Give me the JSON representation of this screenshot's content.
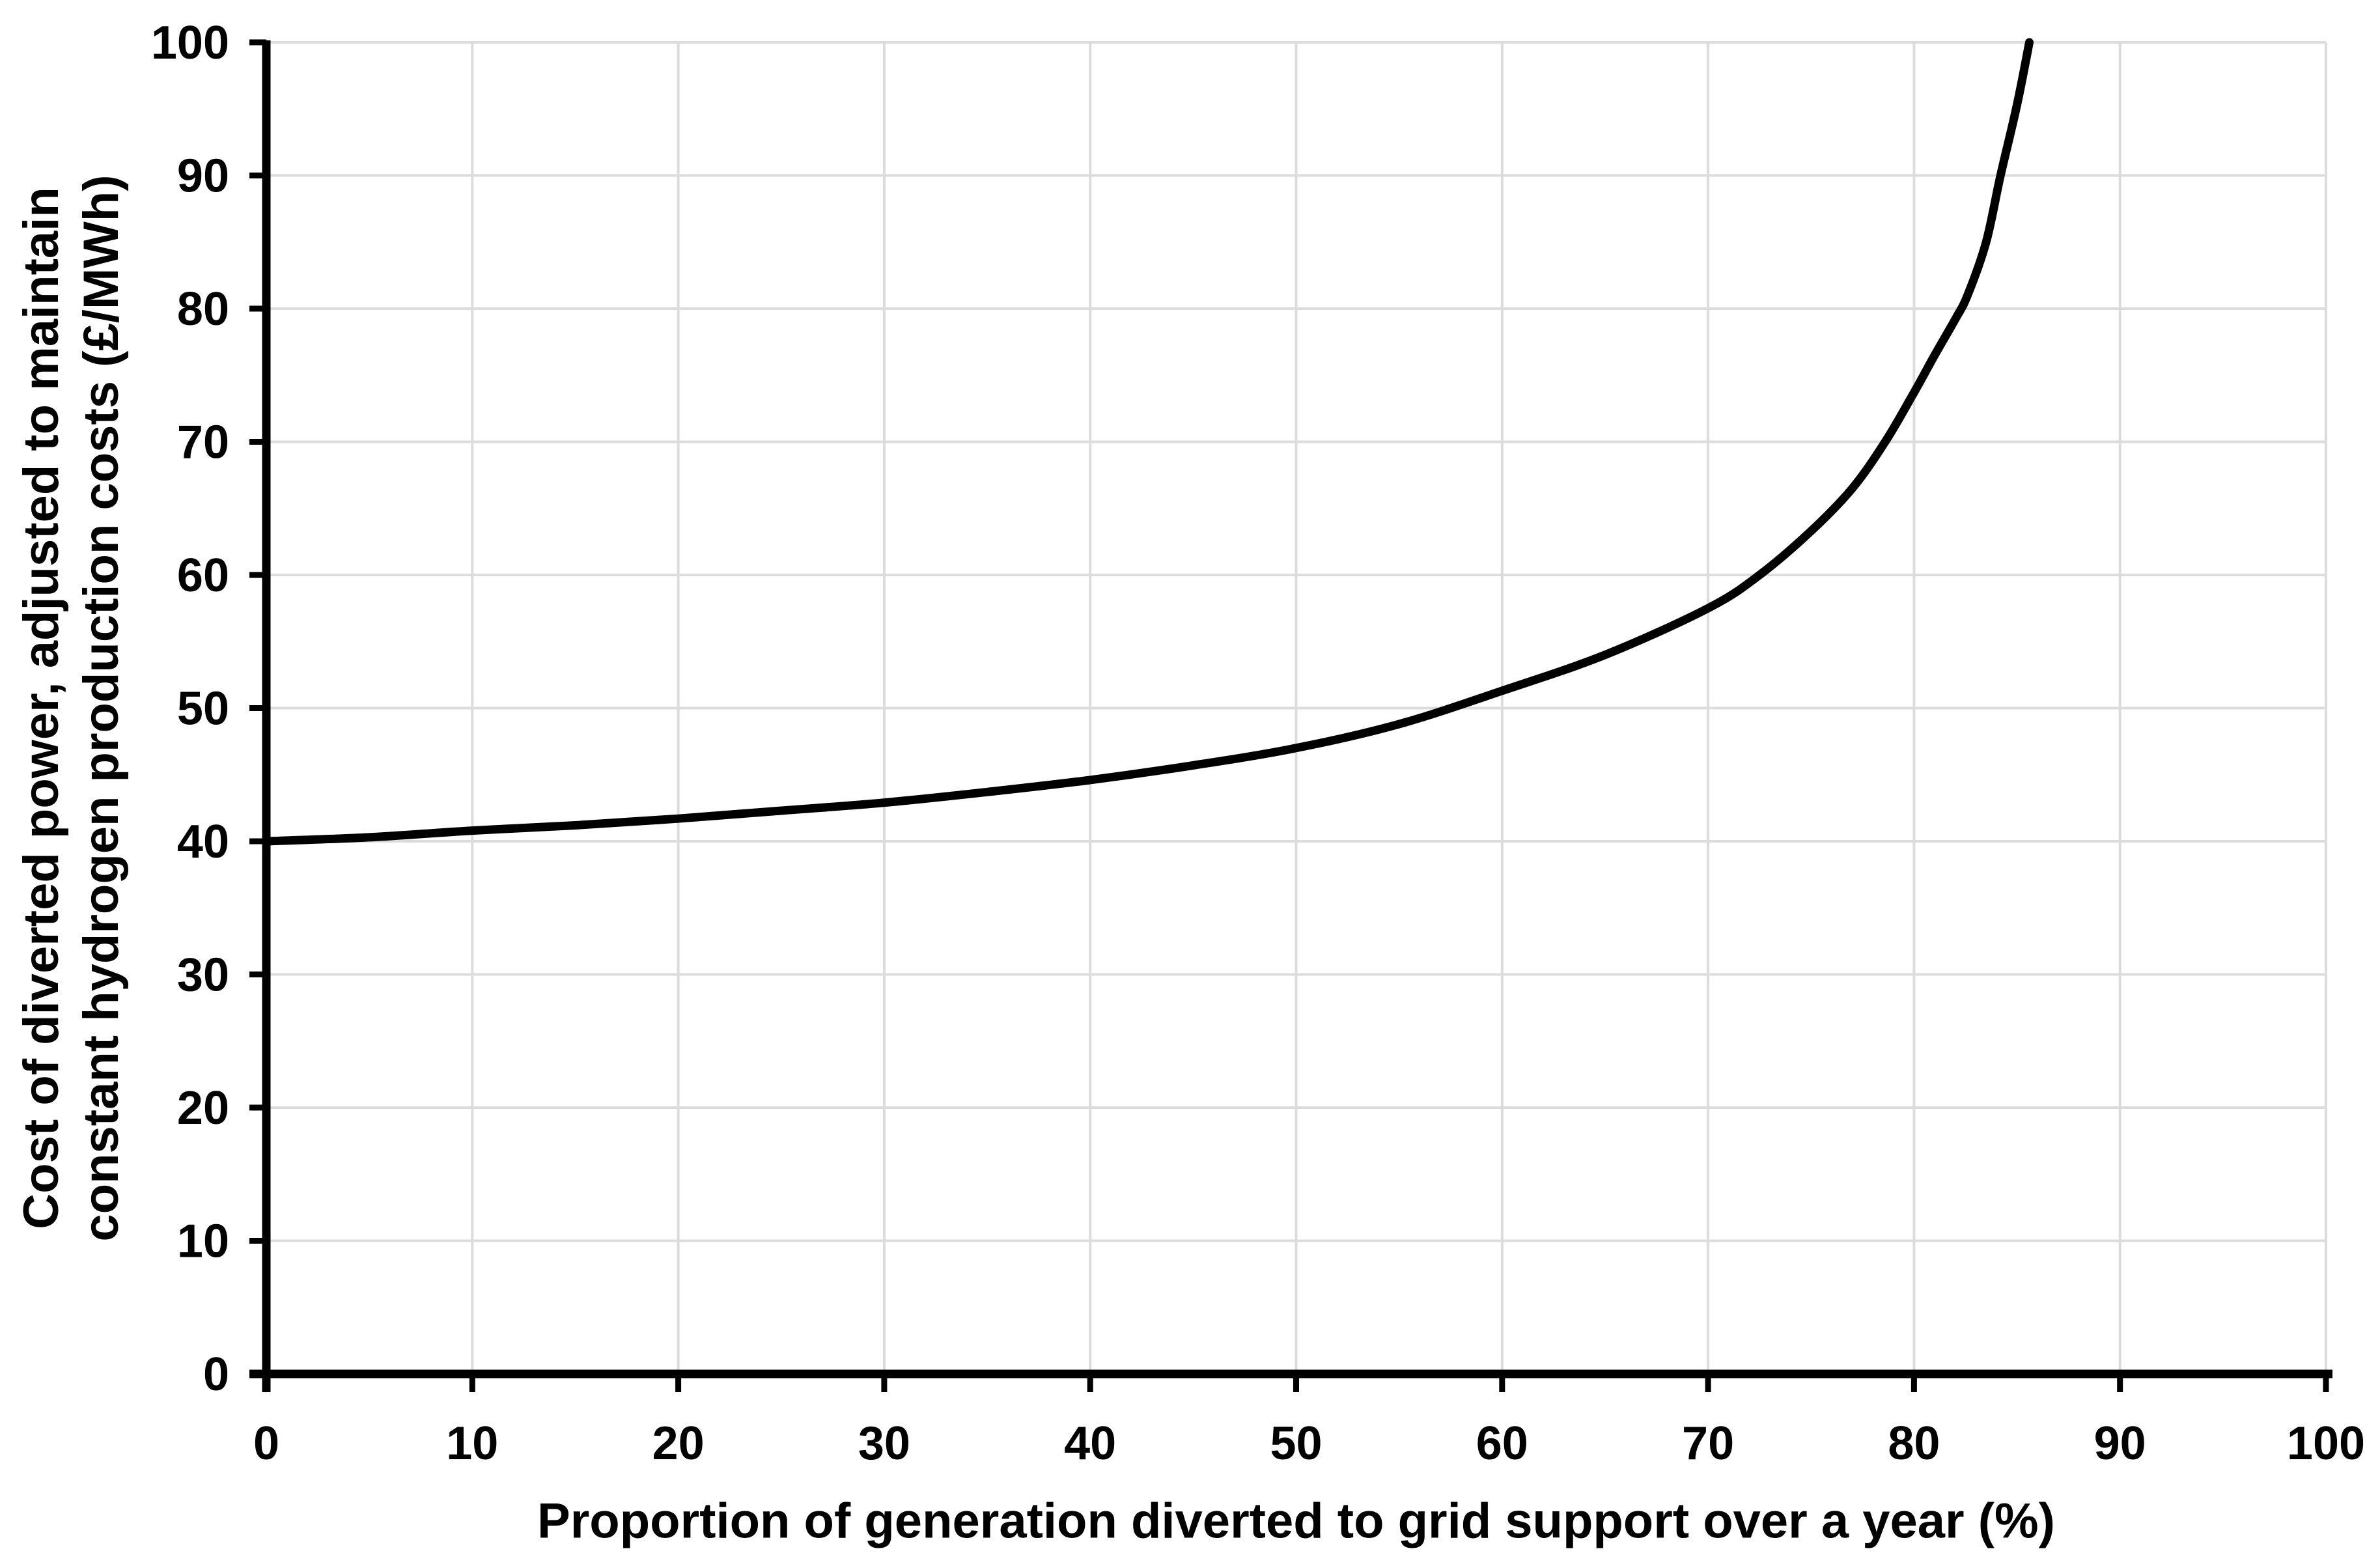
{
  "chart_data": {
    "type": "line",
    "title": "",
    "xlabel": "Proportion of generation diverted to grid support over a year (%)",
    "ylabel": "Cost of diverted power, adjusted to maintain constant hydrogen production costs (£/MWh)",
    "ylabel_lines": [
      "Cost of diverted power, adjusted to maintain",
      "constant hydrogen production costs (£/MWh)"
    ],
    "xlim": [
      0,
      100
    ],
    "ylim": [
      0,
      100
    ],
    "x_ticks": [
      0,
      10,
      20,
      30,
      40,
      50,
      60,
      70,
      80,
      90,
      100
    ],
    "y_ticks": [
      0,
      10,
      20,
      30,
      40,
      50,
      60,
      70,
      80,
      90,
      100
    ],
    "grid": true,
    "legend": "none",
    "series": [
      {
        "name": "Cost of diverted power",
        "color": "#000000",
        "points": [
          [
            0,
            40.0
          ],
          [
            5,
            40.3
          ],
          [
            10,
            40.8
          ],
          [
            15,
            41.2
          ],
          [
            20,
            41.7
          ],
          [
            25,
            42.3
          ],
          [
            30,
            42.9
          ],
          [
            35,
            43.7
          ],
          [
            40,
            44.6
          ],
          [
            45,
            45.7
          ],
          [
            50,
            47.0
          ],
          [
            55,
            48.8
          ],
          [
            60,
            51.3
          ],
          [
            65,
            54.0
          ],
          [
            70,
            57.5
          ],
          [
            72.5,
            60.0
          ],
          [
            75,
            63.3
          ],
          [
            77,
            66.5
          ],
          [
            78.6,
            70.0
          ],
          [
            80,
            73.7
          ],
          [
            81,
            76.5
          ],
          [
            82,
            79.2
          ],
          [
            82.6,
            81.0
          ],
          [
            83.5,
            85.0
          ],
          [
            84.2,
            90.0
          ],
          [
            85,
            95.3
          ],
          [
            85.6,
            100.0
          ]
        ]
      }
    ]
  },
  "colors": {
    "curve": "#000000",
    "axis": "#000000",
    "gridline": "#dcdcdc",
    "text": "#000000",
    "background": "#ffffff"
  }
}
